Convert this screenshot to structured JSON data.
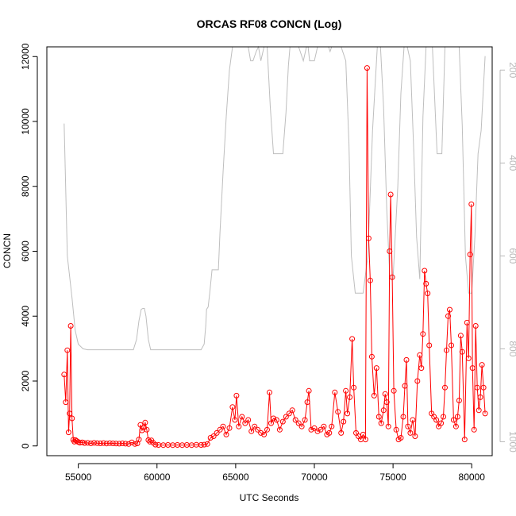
{
  "chart_data": {
    "type": "line",
    "title": "ORCAS RF08 CONCN (Log)",
    "xlabel": "UTC Seconds",
    "ylabel": "CONCN",
    "xlim": [
      53000,
      81300
    ],
    "ylim": [
      -300,
      12300
    ],
    "x_ticks": [
      55000,
      60000,
      65000,
      70000,
      75000,
      80000
    ],
    "y_ticks": [
      0,
      2000,
      4000,
      6000,
      8000,
      10000,
      12000
    ],
    "y2_ticks": [
      200,
      400,
      600,
      800,
      1000
    ],
    "y2lim": [
      1030,
      150
    ],
    "grid": false,
    "legend": "none",
    "colors": {
      "concn": "#ff0000",
      "secondary": "#bebebe",
      "axes": "#000000",
      "right_axis": "#b8b8b8"
    },
    "series": [
      {
        "axis": "left",
        "color": "#ff0000",
        "markers": "open-circle",
        "x": [
          54100,
          54200,
          54300,
          54380,
          54450,
          54520,
          54600,
          54680,
          54750,
          54820,
          54900,
          55000,
          55100,
          55250,
          55400,
          55600,
          55800,
          56000,
          56200,
          56400,
          56600,
          56800,
          57000,
          57200,
          57400,
          57600,
          57800,
          58000,
          58200,
          58400,
          58600,
          58750,
          58850,
          58950,
          59050,
          59150,
          59250,
          59350,
          59450,
          59550,
          59650,
          59750,
          59900,
          60100,
          60400,
          60700,
          61000,
          61300,
          61600,
          61900,
          62200,
          62500,
          62800,
          63000,
          63200,
          63400,
          63600,
          63800,
          64000,
          64200,
          64400,
          64600,
          64800,
          64950,
          65050,
          65200,
          65400,
          65600,
          65800,
          66000,
          66200,
          66400,
          66600,
          66800,
          67000,
          67150,
          67250,
          67400,
          67600,
          67800,
          68000,
          68200,
          68400,
          68600,
          68800,
          69000,
          69200,
          69400,
          69550,
          69650,
          69800,
          70000,
          70200,
          70400,
          70600,
          70800,
          70950,
          71100,
          71300,
          71500,
          71700,
          71850,
          72000,
          72100,
          72250,
          72400,
          72500,
          72650,
          72800,
          72950,
          73100,
          73250,
          73350,
          73450,
          73550,
          73650,
          73800,
          73950,
          74100,
          74250,
          74400,
          74500,
          74600,
          74700,
          74780,
          74850,
          74950,
          75050,
          75200,
          75350,
          75500,
          75650,
          75750,
          75850,
          75950,
          76100,
          76250,
          76400,
          76550,
          76700,
          76800,
          76900,
          77000,
          77100,
          77200,
          77300,
          77450,
          77600,
          77750,
          77900,
          78050,
          78200,
          78300,
          78400,
          78500,
          78600,
          78700,
          78850,
          79000,
          79100,
          79200,
          79300,
          79400,
          79550,
          79700,
          79800,
          79900,
          79980,
          80050,
          80150,
          80250,
          80350,
          80450,
          80550,
          80650,
          80750,
          80850
        ],
        "y": [
          2200,
          1350,
          2950,
          420,
          1000,
          3700,
          850,
          190,
          130,
          180,
          150,
          120,
          100,
          110,
          90,
          95,
          80,
          95,
          85,
          80,
          90,
          75,
          85,
          80,
          75,
          70,
          80,
          70,
          60,
          110,
          60,
          80,
          200,
          650,
          480,
          560,
          720,
          500,
          180,
          130,
          170,
          100,
          40,
          30,
          25,
          30,
          25,
          30,
          25,
          30,
          25,
          35,
          30,
          40,
          60,
          250,
          300,
          400,
          500,
          600,
          350,
          550,
          1200,
          800,
          1550,
          600,
          900,
          700,
          800,
          450,
          600,
          500,
          400,
          350,
          500,
          1650,
          700,
          850,
          800,
          500,
          750,
          900,
          1000,
          1100,
          800,
          700,
          600,
          800,
          1350,
          1700,
          500,
          550,
          450,
          500,
          600,
          350,
          400,
          600,
          1650,
          1050,
          400,
          750,
          1700,
          1000,
          1500,
          3300,
          1800,
          400,
          300,
          200,
          350,
          200,
          11650,
          6400,
          5100,
          2750,
          1550,
          2400,
          900,
          700,
          1100,
          1600,
          1350,
          600,
          6000,
          7750,
          5200,
          1700,
          500,
          200,
          250,
          900,
          1850,
          2650,
          600,
          400,
          800,
          300,
          2000,
          2800,
          2400,
          3450,
          5400,
          5000,
          4700,
          3100,
          1000,
          900,
          800,
          600,
          700,
          900,
          1800,
          2950,
          4000,
          4200,
          3100,
          800,
          600,
          900,
          1400,
          3400,
          2900,
          200,
          3800,
          2700,
          5900,
          7450,
          2400,
          500,
          3700,
          1800,
          1100,
          1500,
          2500,
          1800,
          1000
        ]
      },
      {
        "axis": "right",
        "color": "#bebebe",
        "markers": "none",
        "x": [
          54100,
          54300,
          54600,
          54800,
          55000,
          55300,
          55600,
          56000,
          57000,
          58000,
          58500,
          58700,
          58850,
          59000,
          59100,
          59200,
          59300,
          59450,
          59600,
          59800,
          60000,
          60500,
          61000,
          62000,
          62800,
          63000,
          63100,
          63150,
          63250,
          63350,
          63500,
          63700,
          63900,
          64000,
          64200,
          64400,
          64600,
          64800,
          64950,
          65050,
          65800,
          65950,
          66100,
          66300,
          66450,
          66600,
          66800,
          67000,
          67200,
          67400,
          67700,
          68000,
          68200,
          68350,
          68450,
          68700,
          69000,
          69300,
          69500,
          69600,
          69700,
          70000,
          70200,
          70350,
          70600,
          70900,
          71000,
          71100,
          71300,
          71500,
          71700,
          72000,
          72200,
          72350,
          72600,
          72800,
          73100,
          73400,
          73700,
          74000,
          74200,
          74400,
          74600,
          74800,
          75000,
          75300,
          75500,
          75700,
          75900,
          76100,
          76300,
          76500,
          76700,
          76900,
          77100,
          77300,
          77500,
          77800,
          78100,
          78300,
          78500,
          78800,
          79000,
          79200,
          79400,
          79600,
          79800,
          80000,
          80200,
          80400,
          80600,
          80850
        ],
        "y": [
          315,
          600,
          690,
          760,
          790,
          800,
          802,
          802,
          802,
          802,
          802,
          780,
          740,
          715,
          713,
          713,
          730,
          780,
          802,
          802,
          802,
          802,
          802,
          802,
          802,
          790,
          750,
          715,
          710,
          680,
          630,
          630,
          630,
          550,
          420,
          300,
          200,
          150,
          150,
          150,
          150,
          180,
          180,
          160,
          150,
          180,
          150,
          150,
          280,
          380,
          380,
          380,
          290,
          190,
          150,
          150,
          150,
          180,
          150,
          150,
          180,
          180,
          150,
          150,
          150,
          150,
          160,
          150,
          150,
          150,
          150,
          180,
          360,
          600,
          680,
          680,
          680,
          600,
          330,
          150,
          150,
          280,
          500,
          650,
          650,
          450,
          250,
          150,
          150,
          180,
          360,
          560,
          650,
          300,
          150,
          150,
          150,
          380,
          380,
          150,
          150,
          150,
          150,
          150,
          320,
          600,
          680,
          680,
          560,
          380,
          330,
          170
        ]
      }
    ]
  }
}
